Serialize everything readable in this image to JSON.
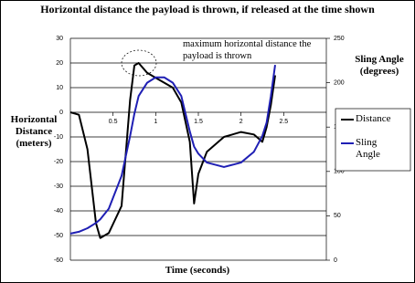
{
  "chart_data": {
    "type": "line",
    "title": "Horizontal distance the payload is thrown, if released at the time shown",
    "x_label": "Time (seconds)",
    "y_label": "Horizontal Distance (meters)",
    "y2_label": "Sling Angle (degrees)",
    "annotation": "maximum horizontal distance the payload is thrown",
    "x": [
      0,
      0.1,
      0.2,
      0.3,
      0.35,
      0.45,
      0.6,
      0.7,
      0.75,
      0.8,
      0.9,
      1.0,
      1.1,
      1.2,
      1.3,
      1.4,
      1.45,
      1.5,
      1.6,
      1.8,
      2.0,
      2.15,
      2.25,
      2.3,
      2.35,
      2.4
    ],
    "series": [
      {
        "name": "Distance",
        "color": "#000000",
        "values": [
          0,
          -1,
          -15,
          -45,
          -51,
          -49,
          -38,
          5,
          19,
          20,
          16,
          14,
          12,
          10,
          4,
          -12,
          -37,
          -25,
          -16,
          -10,
          -8,
          -9,
          -12,
          -6,
          3,
          15
        ]
      },
      {
        "name": "Sling Angle",
        "color": "#1f1fb4",
        "axis": "y2",
        "values": [
          30,
          32,
          36,
          42,
          46,
          58,
          95,
          140,
          165,
          185,
          200,
          206,
          206,
          200,
          185,
          145,
          128,
          120,
          110,
          105,
          110,
          122,
          140,
          155,
          185,
          220
        ]
      }
    ],
    "xlim": [
      0,
      3
    ],
    "xticks": [
      0.5,
      1,
      1.5,
      2,
      2.5
    ],
    "ylim": [
      -60,
      30
    ],
    "yticks": [
      -60,
      -50,
      -40,
      -30,
      -20,
      -10,
      0,
      10,
      20,
      30
    ],
    "y2lim": [
      0,
      250
    ],
    "y2ticks": [
      0,
      50,
      100,
      150,
      200,
      250
    ],
    "grid": true,
    "legend": "right"
  }
}
